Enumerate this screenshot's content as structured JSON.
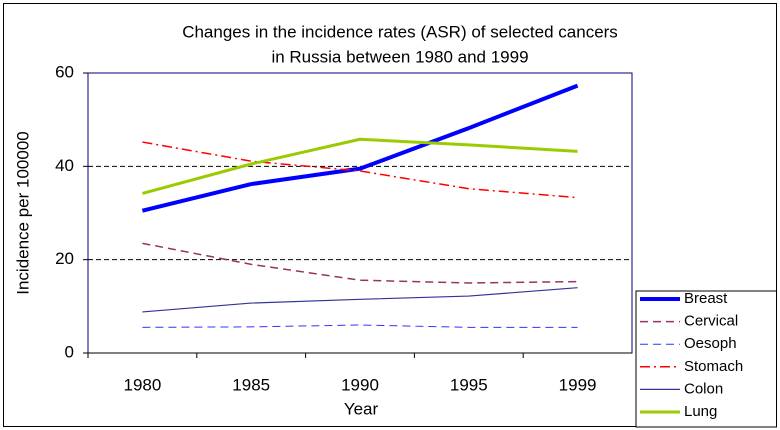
{
  "chart_data": {
    "type": "line",
    "title": [
      "Changes in the incidence rates (ASR) of selected cancers",
      "in Russia between 1980 and 1999"
    ],
    "xlabel": "Year",
    "ylabel": "Incidence per 100000",
    "categories": [
      "1980",
      "1985",
      "1990",
      "1995",
      "1999"
    ],
    "ylim": [
      0,
      60
    ],
    "yticks": [
      0,
      20,
      40,
      60
    ],
    "grid": true,
    "legend": "lower right",
    "series": [
      {
        "name": "Breast",
        "color": "#0000ff",
        "linewidth": 4,
        "style": "solid",
        "values": [
          30.5,
          36.2,
          39.5,
          48.2,
          57.3
        ]
      },
      {
        "name": "Cervical",
        "color": "#993366",
        "linewidth": 1.5,
        "style": "dashed",
        "values": [
          23.5,
          19,
          15.6,
          15,
          15.3
        ]
      },
      {
        "name": "Oesoph",
        "color": "#3333ff",
        "linewidth": 1,
        "style": "dashed",
        "values": [
          5.5,
          5.6,
          6,
          5.5,
          5.5
        ]
      },
      {
        "name": "Stomach",
        "color": "#ff0000",
        "linewidth": 1.5,
        "style": "dashdot",
        "values": [
          45.2,
          41.1,
          39,
          35.2,
          33.3
        ]
      },
      {
        "name": "Colon",
        "color": "#333399",
        "linewidth": 1.2,
        "style": "solid",
        "values": [
          8.8,
          10.7,
          11.5,
          12.2,
          14
        ]
      },
      {
        "name": "Lung",
        "color": "#99cc00",
        "linewidth": 3,
        "style": "solid",
        "values": [
          34.2,
          40.5,
          45.8,
          44.6,
          43.2
        ]
      }
    ]
  }
}
